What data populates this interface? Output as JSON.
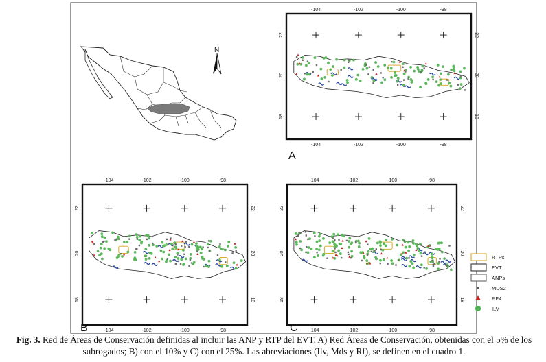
{
  "figure": {
    "panels": [
      {
        "id": "A",
        "letter": "A",
        "top_ticks": [
          "-104",
          "-102",
          "-100",
          "-98"
        ],
        "bottom_ticks": [
          "-104",
          "-102",
          "-100",
          "-98"
        ],
        "left_ticks": [
          "22",
          "20",
          "18"
        ],
        "right_ticks": [
          "22",
          "20",
          "18"
        ]
      },
      {
        "id": "B",
        "letter": "B",
        "top_ticks": [
          "-104",
          "-102",
          "-100",
          "-98"
        ],
        "bottom_ticks": [
          "-104",
          "-102",
          "-100",
          "-98"
        ],
        "left_ticks": [
          "22",
          "20",
          "18"
        ],
        "right_ticks": [
          "22",
          "20",
          "18"
        ]
      },
      {
        "id": "C",
        "letter": "C",
        "top_ticks": [
          "-104",
          "-102",
          "-100",
          "-98"
        ],
        "bottom_ticks": [
          "-104",
          "-102",
          "-100",
          "-98"
        ],
        "left_ticks": [
          "22",
          "20",
          "18"
        ],
        "right_ticks": [
          "22",
          "20",
          "18"
        ]
      }
    ],
    "north_label": "N",
    "legend": [
      {
        "label": "RTPs",
        "symbol": "box",
        "color": "#d4a017"
      },
      {
        "label": "EVT",
        "symbol": "box",
        "color": "#222222"
      },
      {
        "label": "ANPs",
        "symbol": "box",
        "color": "#555555"
      },
      {
        "label": "MDS2",
        "symbol": "square",
        "color": "#555555"
      },
      {
        "label": "RF4",
        "symbol": "triangle",
        "color": "#cc2020"
      },
      {
        "label": "ILV",
        "symbol": "circle",
        "color": "#4caf50"
      }
    ],
    "colors": {
      "ilv_green": "#5cb85c",
      "mds_gray": "#6b6b6b",
      "rf_red": "#cc2020",
      "anp_blue": "#2a4aa0",
      "rtp_yellow": "#d4a017",
      "mexico_highlight": "#7a7a7a"
    }
  },
  "caption": {
    "label": "Fig. 3.",
    "text": "Red de Áreas de Conservación definidas al incluir las ANP  y RTP del EVT.  A) Red Áreas de Conservación, obtenidas con el 5% de los subrogados; B) con el 10% y C) con el 25%. Las abreviaciones (Ilv, Mds y Rf), se definen en el cuadro 1."
  }
}
